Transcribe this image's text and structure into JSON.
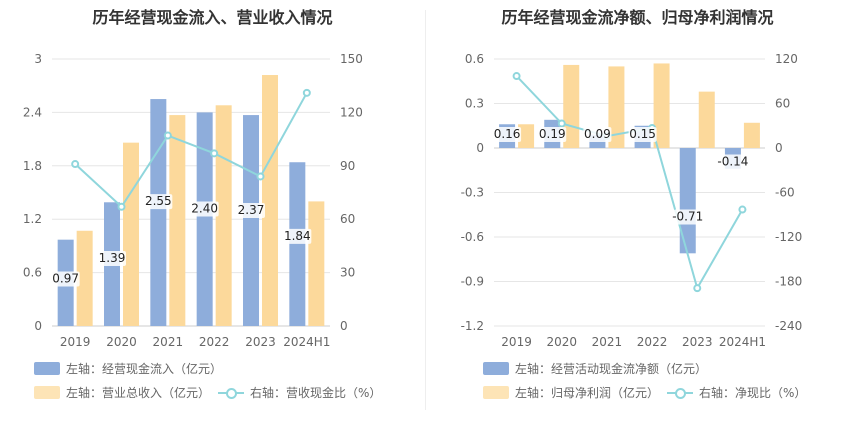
{
  "charts": [
    {
      "title": "历年经营现金流入、营业收入情况",
      "legend": [
        {
          "label": "左轴：经营现金流入（亿元）",
          "color": "#8eaddb",
          "kind": "bar"
        },
        {
          "label": "左轴：营业总收入（亿元）",
          "color": "#fcd99b",
          "kind": "bar"
        },
        {
          "label": "右轴：营收现金比（%）",
          "color": "#8fd6dc",
          "kind": "line"
        }
      ]
    },
    {
      "title": "历年经营现金流净额、归母净利润情况",
      "legend": [
        {
          "label": "左轴：经营活动现金流净额（亿元）",
          "color": "#8eaddb",
          "kind": "bar"
        },
        {
          "label": "左轴：归母净利润（亿元）",
          "color": "#fcd99b",
          "kind": "bar"
        },
        {
          "label": "右轴：净现比（%）",
          "color": "#8fd6dc",
          "kind": "line"
        }
      ]
    }
  ],
  "chart_data": [
    {
      "type": "bar",
      "title": "历年经营现金流入、营业收入情况",
      "categories": [
        "2019",
        "2020",
        "2021",
        "2022",
        "2023",
        "2024H1"
      ],
      "series": [
        {
          "name": "左轴：经营现金流入（亿元）",
          "axis": "left",
          "kind": "bar",
          "color": "#8eaddb",
          "values": [
            0.97,
            1.39,
            2.55,
            2.4,
            2.37,
            1.84
          ],
          "labels": [
            "0.97",
            "1.39",
            "2.55",
            "2.40",
            "2.37",
            "1.84"
          ]
        },
        {
          "name": "左轴：营业总收入（亿元）",
          "axis": "left",
          "kind": "bar",
          "color": "#fcd99b",
          "values": [
            1.07,
            2.06,
            2.37,
            2.48,
            2.82,
            1.4
          ]
        },
        {
          "name": "右轴：营收现金比（%）",
          "axis": "right",
          "kind": "line",
          "color": "#8fd6dc",
          "values": [
            91,
            67,
            107,
            97,
            84,
            131
          ]
        }
      ],
      "yleft": {
        "min": 0,
        "max": 3,
        "ticks": [
          "0",
          "0.6",
          "1.2",
          "1.8",
          "2.4",
          "3"
        ]
      },
      "yright": {
        "min": 0,
        "max": 150,
        "ticks": [
          "0",
          "30",
          "60",
          "90",
          "120",
          "150"
        ]
      },
      "grid": true,
      "legend_position": "bottom"
    },
    {
      "type": "bar",
      "title": "历年经营现金流净额、归母净利润情况",
      "categories": [
        "2019",
        "2020",
        "2021",
        "2022",
        "2023",
        "2024H1"
      ],
      "series": [
        {
          "name": "左轴：经营活动现金流净额（亿元）",
          "axis": "left",
          "kind": "bar",
          "color": "#8eaddb",
          "values": [
            0.16,
            0.19,
            0.09,
            0.15,
            -0.71,
            -0.14
          ],
          "labels": [
            "0.16",
            "0.19",
            "0.09",
            "0.15",
            "-0.71",
            "-0.14"
          ]
        },
        {
          "name": "左轴：归母净利润（亿元）",
          "axis": "left",
          "kind": "bar",
          "color": "#fcd99b",
          "values": [
            0.16,
            0.56,
            0.55,
            0.57,
            0.38,
            0.17
          ]
        },
        {
          "name": "右轴：净现比（%）",
          "axis": "right",
          "kind": "line",
          "color": "#8fd6dc",
          "values": [
            97,
            33,
            16,
            27,
            -189,
            -83
          ]
        }
      ],
      "yleft": {
        "min": -1.2,
        "max": 0.6,
        "ticks": [
          "-1.2",
          "-0.9",
          "-0.6",
          "-0.3",
          "0",
          "0.3",
          "0.6"
        ]
      },
      "yright": {
        "min": -240,
        "max": 120,
        "ticks": [
          "-240",
          "-180",
          "-120",
          "-60",
          "0",
          "60",
          "120"
        ]
      },
      "grid": true,
      "legend_position": "bottom"
    }
  ]
}
